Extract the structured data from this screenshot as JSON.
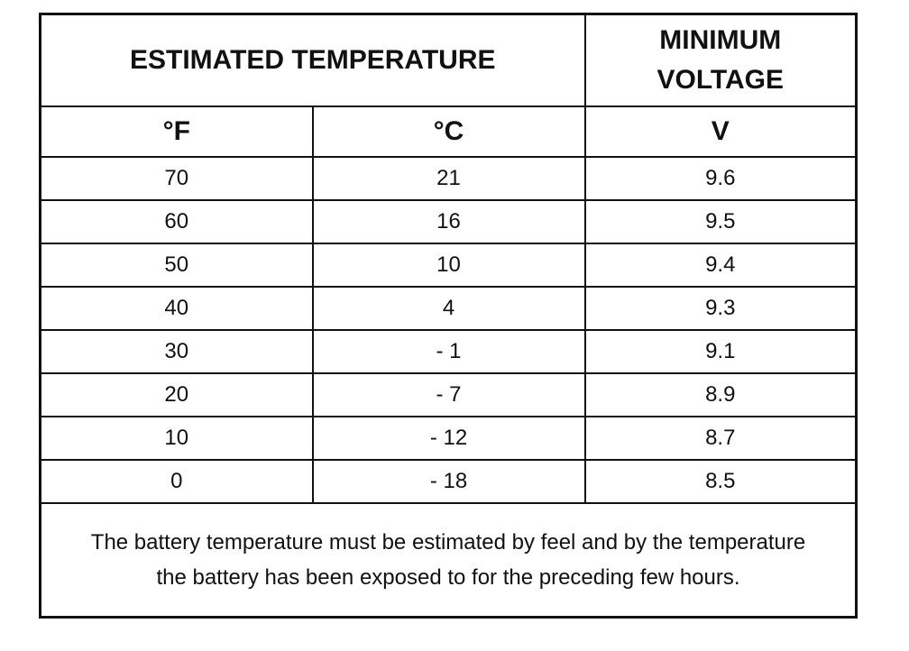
{
  "table": {
    "header": [
      "ESTIMATED TEMPERATURE",
      "MINIMUM VOLTAGE"
    ],
    "units": [
      "°F",
      "°C",
      "V"
    ],
    "rows": [
      [
        70,
        21,
        9.6
      ],
      [
        60,
        16,
        9.5
      ],
      [
        50,
        10,
        9.4
      ],
      [
        40,
        4,
        9.3
      ],
      [
        30,
        "- 1",
        9.1
      ],
      [
        20,
        "- 7",
        8.9
      ],
      [
        10,
        "- 12",
        8.7
      ],
      [
        0,
        "- 18",
        8.5
      ]
    ],
    "note": "The battery temperature must be estimated by feel and by the temperature the battery has been exposed to for the preceding few hours."
  }
}
